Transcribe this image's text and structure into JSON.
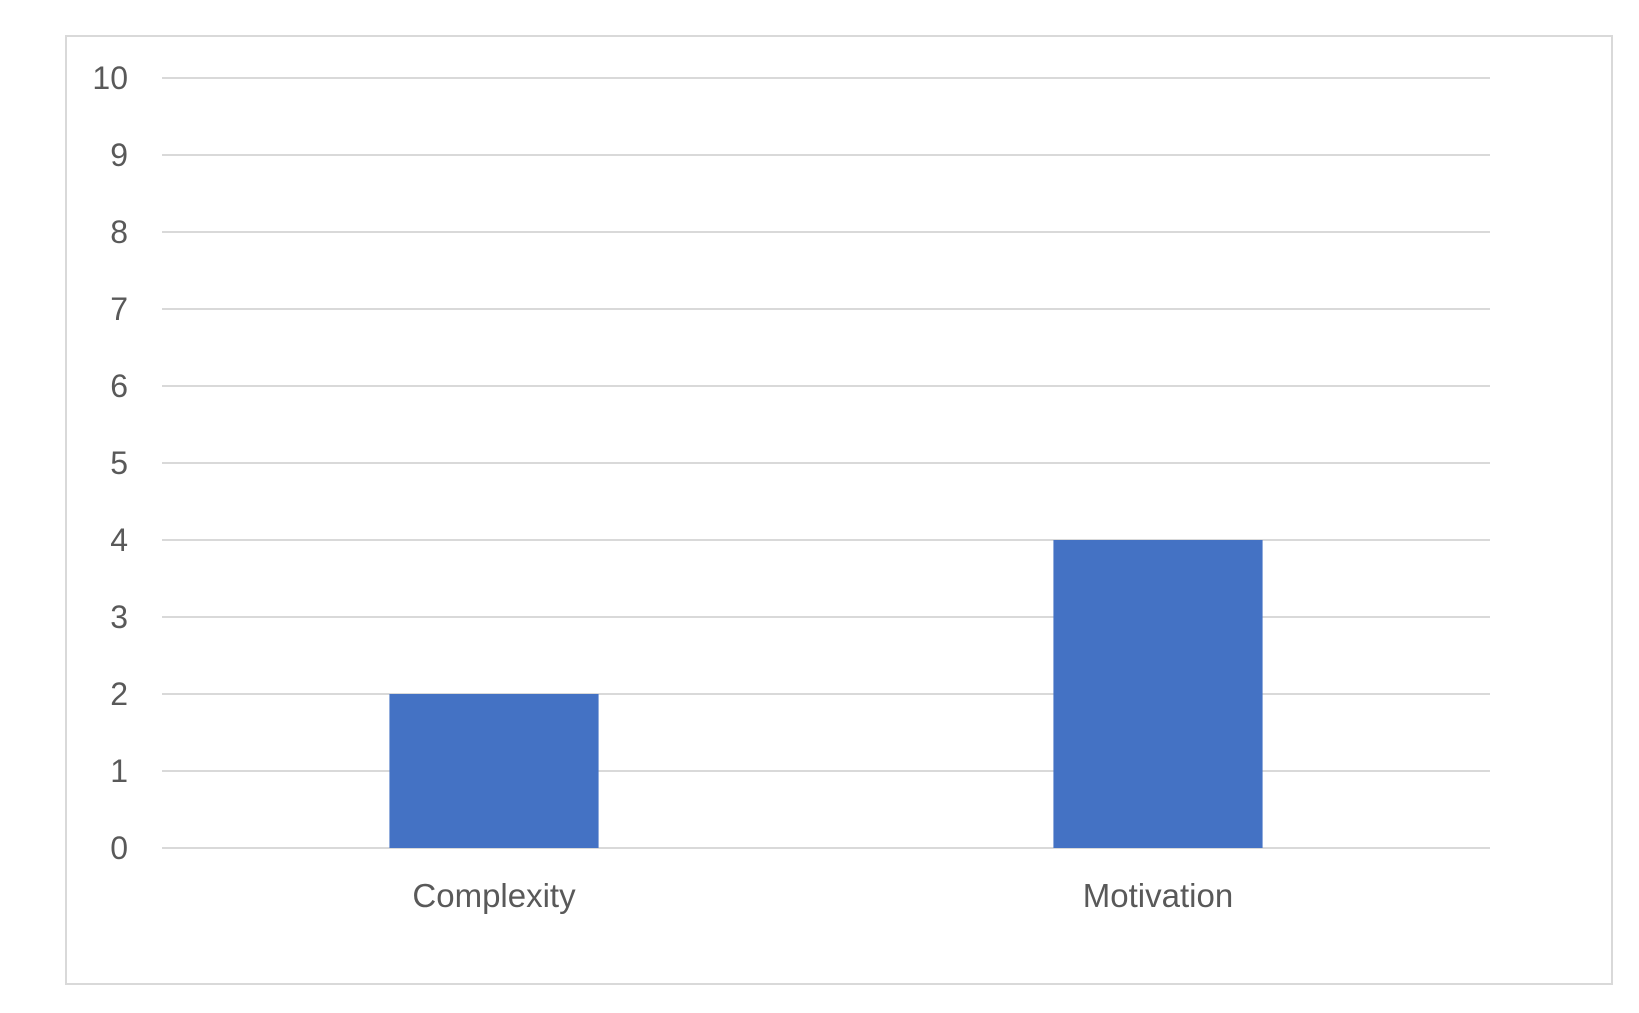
{
  "chart_data": {
    "type": "bar",
    "title": "",
    "xlabel": "",
    "ylabel": "",
    "categories": [
      "Complexity",
      "Motivation"
    ],
    "values": [
      2,
      4
    ],
    "ylim": [
      0,
      10
    ],
    "yticks": [
      0,
      1,
      2,
      3,
      4,
      5,
      6,
      7,
      8,
      9,
      10
    ],
    "grid": true,
    "legend": "none",
    "colors": {
      "bar": "#4472c4",
      "grid": "#d9d9d9",
      "text": "#595959",
      "border": "#d9d9d9"
    }
  }
}
